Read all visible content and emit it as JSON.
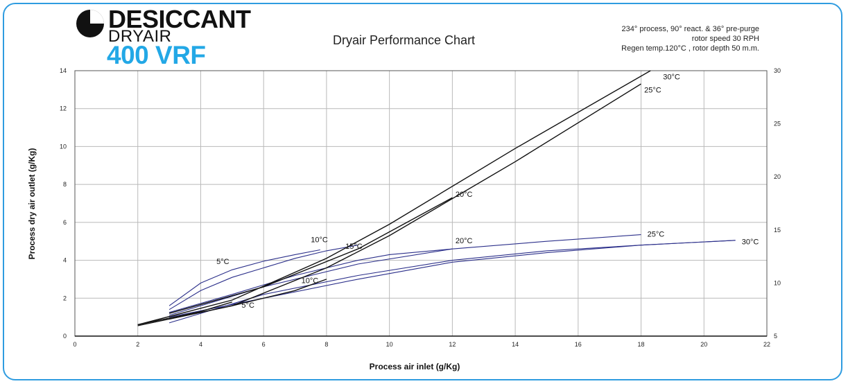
{
  "logo": {
    "line1": "DESICCANT",
    "line2": "DRYAIR",
    "line3": "400 VRF",
    "icon": "pie-logo-icon"
  },
  "header": {
    "title": "Dryair Performance Chart",
    "notes": [
      "234° process, 90° react. & 36° pre-purge",
      "rotor speed 30 RPH",
      "Regen temp.120°C , rotor depth 50 m.m."
    ]
  },
  "colors": {
    "frame": "#2f9ce0",
    "brand": "#23a8e6",
    "curves_blue": "#2b2f8a",
    "curves_black": "#111111"
  },
  "chart_data": {
    "type": "line",
    "title": "Dryair Performance Chart",
    "xlabel": "Process air inlet (g/Kg)",
    "ylabel": "Process dry air outlet (g/Kg)",
    "xlim": [
      0,
      22
    ],
    "ylim": [
      0,
      14
    ],
    "y2lim": [
      5,
      30
    ],
    "grid": true,
    "x_ticks": [
      "0",
      "2",
      "4",
      "6",
      "8",
      "10",
      "12",
      "14",
      "16",
      "18",
      "20",
      "22"
    ],
    "y_ticks": [
      "0",
      "2",
      "4",
      "6",
      "8",
      "10",
      "12",
      "14"
    ],
    "y2_ticks": [
      "5",
      "10",
      "15",
      "20",
      "25",
      "30"
    ],
    "series": [
      {
        "name": "5°C",
        "color": "blue",
        "points": [
          [
            3,
            1.6
          ],
          [
            4,
            2.8
          ],
          [
            5,
            3.5
          ],
          [
            6,
            3.95
          ],
          [
            7,
            4.3
          ],
          [
            7.8,
            4.55
          ]
        ],
        "label": "5°C",
        "label_at": [
          4.5,
          3.8
        ]
      },
      {
        "name": "10°C",
        "color": "blue",
        "points": [
          [
            3,
            1.4
          ],
          [
            4,
            2.4
          ],
          [
            5,
            3.1
          ],
          [
            6,
            3.6
          ],
          [
            7,
            4.1
          ],
          [
            8,
            4.5
          ],
          [
            9,
            4.8
          ]
        ],
        "label": "10°C",
        "label_at": [
          7.5,
          4.95
        ]
      },
      {
        "name": "15°C",
        "color": "blue",
        "points": [
          [
            3,
            1.25
          ],
          [
            5,
            2.2
          ],
          [
            7,
            3.2
          ],
          [
            9,
            4.0
          ],
          [
            10,
            4.3
          ],
          [
            12,
            4.6
          ]
        ],
        "label": "15°C",
        "label_at": [
          8.6,
          4.6
        ]
      },
      {
        "name": "20°C",
        "color": "blue",
        "points": [
          [
            3,
            1.1
          ],
          [
            6,
            2.6
          ],
          [
            9,
            3.8
          ],
          [
            12,
            4.6
          ],
          [
            15,
            5.0
          ],
          [
            18,
            5.35
          ]
        ],
        "label": "20°C",
        "label_at": [
          12.1,
          4.9
        ]
      },
      {
        "name": "25°C",
        "color": "blue",
        "points": [
          [
            3,
            0.7
          ],
          [
            6,
            2.2
          ],
          [
            9,
            3.2
          ],
          [
            12,
            4.0
          ],
          [
            15,
            4.5
          ],
          [
            18,
            4.8
          ],
          [
            21,
            5.05
          ]
        ],
        "label": "25°C",
        "label_at": [
          18.2,
          5.25
        ]
      },
      {
        "name": "30°C",
        "color": "blue",
        "points": [
          [
            3,
            1.0
          ],
          [
            6,
            2.0
          ],
          [
            9,
            3.0
          ],
          [
            12,
            3.9
          ],
          [
            15,
            4.4
          ],
          [
            18,
            4.8
          ],
          [
            21,
            5.05
          ]
        ],
        "label": "30°C",
        "label_at": [
          21.2,
          4.85
        ]
      },
      {
        "name": "5°C",
        "color": "black",
        "points": [
          [
            2,
            0.6
          ],
          [
            3,
            0.95
          ],
          [
            4,
            1.3
          ],
          [
            5,
            1.8
          ]
        ],
        "label": "5°C",
        "label_at": [
          5.3,
          1.5
        ]
      },
      {
        "name": "10°C",
        "color": "black",
        "points": [
          [
            3,
            0.9
          ],
          [
            5,
            1.6
          ],
          [
            7,
            2.4
          ],
          [
            8,
            3.0
          ]
        ],
        "label": "10°C",
        "label_at": [
          7.2,
          2.8
        ]
      },
      {
        "name": "20°C",
        "color": "black",
        "points": [
          [
            3,
            1.2
          ],
          [
            6,
            2.6
          ],
          [
            9,
            4.6
          ],
          [
            12,
            7.3
          ]
        ],
        "label": "20°C",
        "label_at": [
          12.1,
          7.35
        ]
      },
      {
        "name": "25°C",
        "color": "black",
        "points": [
          [
            2,
            0.55
          ],
          [
            5,
            1.6
          ],
          [
            8,
            3.6
          ],
          [
            10,
            5.3
          ],
          [
            14,
            9.2
          ],
          [
            18,
            13.3
          ]
        ],
        "label": "25°C",
        "label_at": [
          18.1,
          12.85
        ]
      },
      {
        "name": "30°C",
        "color": "black",
        "points": [
          [
            2,
            0.6
          ],
          [
            5,
            1.9
          ],
          [
            8,
            4.1
          ],
          [
            10,
            5.9
          ],
          [
            14,
            9.9
          ],
          [
            18.3,
            14.0
          ]
        ],
        "label": "30°C",
        "label_at": [
          18.7,
          13.55
        ]
      }
    ]
  }
}
